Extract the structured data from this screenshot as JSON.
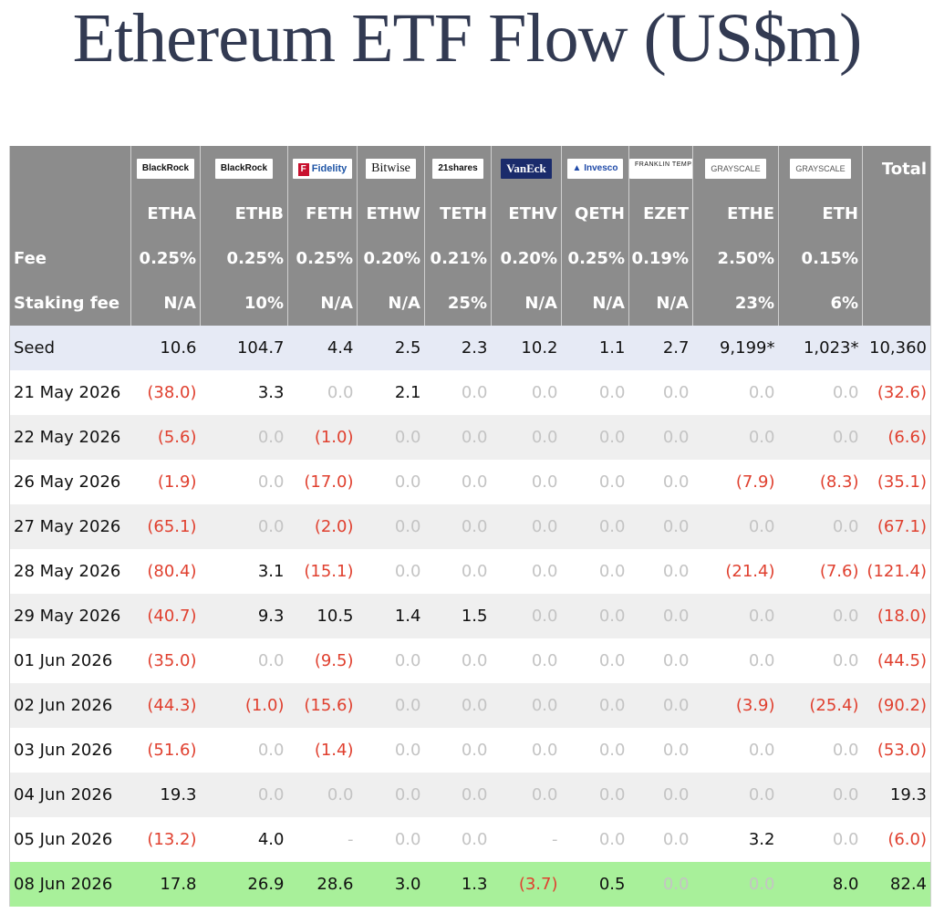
{
  "title": "Ethereum ETF Flow (US$m)",
  "columns": [
    {
      "logo": "BlackRock",
      "ticker": "ETHA",
      "fee": "0.25%",
      "staking_fee": "N/A",
      "seed": "10.6"
    },
    {
      "logo": "BlackRock",
      "ticker": "ETHB",
      "fee": "0.25%",
      "staking_fee": "10%",
      "seed": "104.7"
    },
    {
      "logo": "Fidelity",
      "ticker": "FETH",
      "fee": "0.25%",
      "staking_fee": "N/A",
      "seed": "4.4"
    },
    {
      "logo": "Bitwise",
      "ticker": "ETHW",
      "fee": "0.20%",
      "staking_fee": "N/A",
      "seed": "2.5"
    },
    {
      "logo": "21shares",
      "ticker": "TETH",
      "fee": "0.21%",
      "staking_fee": "25%",
      "seed": "2.3"
    },
    {
      "logo": "VanEck",
      "ticker": "ETHV",
      "fee": "0.20%",
      "staking_fee": "N/A",
      "seed": "10.2"
    },
    {
      "logo": "Invesco",
      "ticker": "QETH",
      "fee": "0.25%",
      "staking_fee": "N/A",
      "seed": "1.1"
    },
    {
      "logo": "FRANKLIN TEMPLETON",
      "ticker": "EZET",
      "fee": "0.19%",
      "staking_fee": "N/A",
      "seed": "2.7"
    },
    {
      "logo": "GRAYSCALE",
      "ticker": "ETHE",
      "fee": "2.50%",
      "staking_fee": "23%",
      "seed": "9,199*"
    },
    {
      "logo": "GRAYSCALE",
      "ticker": "ETH",
      "fee": "0.15%",
      "staking_fee": "6%",
      "seed": "1,023*"
    }
  ],
  "header": {
    "total_label": "Total",
    "fee_label": "Fee",
    "staking_label": "Staking fee",
    "seed_label": "Seed",
    "seed_total": "10,360"
  },
  "chart_data": {
    "type": "table",
    "title": "Ethereum ETF Flow (US$m)",
    "columns": [
      "ETHA",
      "ETHB",
      "FETH",
      "ETHW",
      "TETH",
      "ETHV",
      "QETH",
      "EZET",
      "ETHE",
      "ETH",
      "Total"
    ],
    "rows": [
      {
        "date": "21 May 2026",
        "values": [
          "(38.0)",
          "3.3",
          "0.0",
          "2.1",
          "0.0",
          "0.0",
          "0.0",
          "0.0",
          "0.0",
          "0.0",
          "(32.6)"
        ]
      },
      {
        "date": "22 May 2026",
        "values": [
          "(5.6)",
          "0.0",
          "(1.0)",
          "0.0",
          "0.0",
          "0.0",
          "0.0",
          "0.0",
          "0.0",
          "0.0",
          "(6.6)"
        ]
      },
      {
        "date": "26 May 2026",
        "values": [
          "(1.9)",
          "0.0",
          "(17.0)",
          "0.0",
          "0.0",
          "0.0",
          "0.0",
          "0.0",
          "(7.9)",
          "(8.3)",
          "(35.1)"
        ]
      },
      {
        "date": "27 May 2026",
        "values": [
          "(65.1)",
          "0.0",
          "(2.0)",
          "0.0",
          "0.0",
          "0.0",
          "0.0",
          "0.0",
          "0.0",
          "0.0",
          "(67.1)"
        ]
      },
      {
        "date": "28 May 2026",
        "values": [
          "(80.4)",
          "3.1",
          "(15.1)",
          "0.0",
          "0.0",
          "0.0",
          "0.0",
          "0.0",
          "(21.4)",
          "(7.6)",
          "(121.4)"
        ]
      },
      {
        "date": "29 May 2026",
        "values": [
          "(40.7)",
          "9.3",
          "10.5",
          "1.4",
          "1.5",
          "0.0",
          "0.0",
          "0.0",
          "0.0",
          "0.0",
          "(18.0)"
        ]
      },
      {
        "date": "01 Jun 2026",
        "values": [
          "(35.0)",
          "0.0",
          "(9.5)",
          "0.0",
          "0.0",
          "0.0",
          "0.0",
          "0.0",
          "0.0",
          "0.0",
          "(44.5)"
        ]
      },
      {
        "date": "02 Jun 2026",
        "values": [
          "(44.3)",
          "(1.0)",
          "(15.6)",
          "0.0",
          "0.0",
          "0.0",
          "0.0",
          "0.0",
          "(3.9)",
          "(25.4)",
          "(90.2)"
        ]
      },
      {
        "date": "03 Jun 2026",
        "values": [
          "(51.6)",
          "0.0",
          "(1.4)",
          "0.0",
          "0.0",
          "0.0",
          "0.0",
          "0.0",
          "0.0",
          "0.0",
          "(53.0)"
        ]
      },
      {
        "date": "04 Jun 2026",
        "values": [
          "19.3",
          "0.0",
          "0.0",
          "0.0",
          "0.0",
          "0.0",
          "0.0",
          "0.0",
          "0.0",
          "0.0",
          "19.3"
        ]
      },
      {
        "date": "05 Jun 2026",
        "values": [
          "(13.2)",
          "4.0",
          "-",
          "0.0",
          "0.0",
          "-",
          "0.0",
          "0.0",
          "3.2",
          "0.0",
          "(6.0)"
        ]
      },
      {
        "date": "08 Jun 2026",
        "values": [
          "17.8",
          "26.9",
          "28.6",
          "3.0",
          "1.3",
          "(3.7)",
          "0.5",
          "0.0",
          "0.0",
          "8.0",
          "82.4"
        ],
        "highlight": true
      }
    ]
  },
  "colors": {
    "header_bg": "#8c8c8c",
    "negative": "#e0402f",
    "zero": "#c4c4c4",
    "highlight": "#a8f09a",
    "seed_bg": "#e6eaf5",
    "title": "#323a52"
  }
}
